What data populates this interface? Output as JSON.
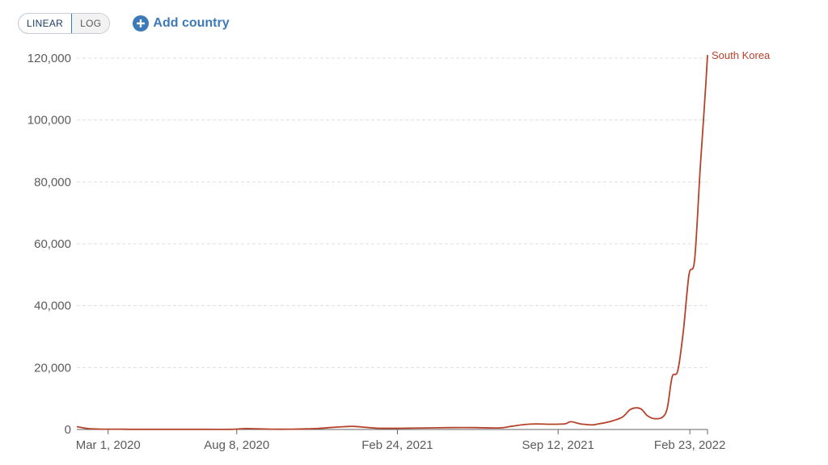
{
  "controls": {
    "scale_options": [
      "LINEAR",
      "LOG"
    ],
    "selected_scale": "LINEAR",
    "add_country_label": "Add country"
  },
  "colors": {
    "series": "#b5422a",
    "grid": "#dddddd",
    "axis": "#666666",
    "accent": "#3c7ab9"
  },
  "chart_data": {
    "type": "line",
    "title": "",
    "xlabel": "",
    "ylabel": "",
    "ylim": [
      0,
      120000
    ],
    "yticks": [
      0,
      20000,
      40000,
      60000,
      80000,
      100000,
      120000
    ],
    "ytick_labels": [
      "0",
      "20,000",
      "40,000",
      "60,000",
      "80,000",
      "100,000",
      "120,000"
    ],
    "xlim": [
      "2020-01-22",
      "2022-03-17"
    ],
    "xticks": [
      "2020-03-01",
      "2020-08-08",
      "2021-02-24",
      "2021-09-12",
      "2022-02-23"
    ],
    "xtick_labels": [
      "Mar 1, 2020",
      "Aug 8, 2020",
      "Feb 24, 2021",
      "Sep 12, 2021",
      "Feb 23, 2022"
    ],
    "grid": true,
    "series": [
      {
        "name": "South Korea",
        "x": [
          "2020-01-22",
          "2020-02-05",
          "2020-02-20",
          "2020-03-01",
          "2020-03-15",
          "2020-04-01",
          "2020-05-01",
          "2020-06-01",
          "2020-07-01",
          "2020-08-01",
          "2020-08-20",
          "2020-09-01",
          "2020-09-20",
          "2020-10-15",
          "2020-11-15",
          "2020-12-01",
          "2020-12-20",
          "2021-01-01",
          "2021-01-15",
          "2021-02-01",
          "2021-03-01",
          "2021-04-01",
          "2021-05-01",
          "2021-06-01",
          "2021-07-01",
          "2021-07-15",
          "2021-08-01",
          "2021-08-15",
          "2021-09-01",
          "2021-09-20",
          "2021-09-28",
          "2021-10-10",
          "2021-10-25",
          "2021-11-01",
          "2021-11-15",
          "2021-12-01",
          "2021-12-10",
          "2021-12-18",
          "2021-12-25",
          "2022-01-01",
          "2022-01-10",
          "2022-01-20",
          "2022-01-26",
          "2022-02-01",
          "2022-02-08",
          "2022-02-15",
          "2022-02-22",
          "2022-03-01",
          "2022-03-08",
          "2022-03-12",
          "2022-03-15",
          "2022-03-17"
        ],
        "y": [
          900,
          300,
          100,
          100,
          100,
          50,
          50,
          50,
          50,
          50,
          300,
          200,
          100,
          100,
          300,
          600,
          900,
          1000,
          700,
          400,
          400,
          500,
          600,
          600,
          500,
          1000,
          1600,
          1800,
          1700,
          1800,
          2500,
          1800,
          1500,
          1800,
          2500,
          4000,
          6300,
          7000,
          6500,
          4500,
          3500,
          4000,
          7000,
          17000,
          19000,
          32000,
          50000,
          55000,
          85000,
          100000,
          112000,
          121000
        ]
      }
    ]
  }
}
